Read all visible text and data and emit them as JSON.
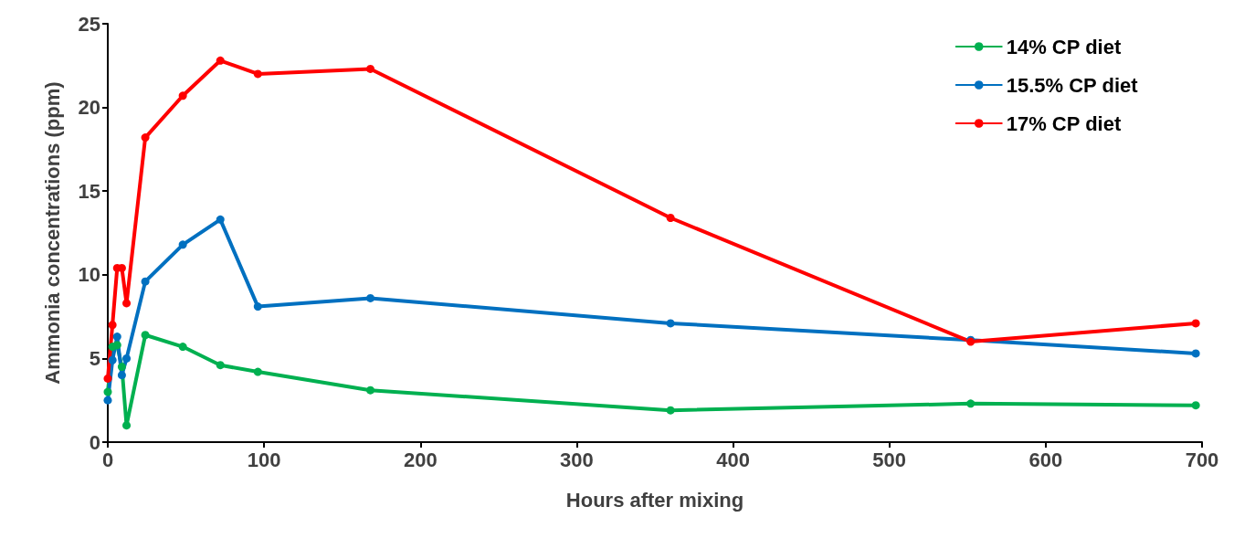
{
  "chart_data": {
    "type": "line",
    "xlabel": "Hours after mixing",
    "ylabel": "Ammonia concentrations (ppm)",
    "x": [
      0,
      3,
      6,
      9,
      12,
      24,
      48,
      72,
      96,
      168,
      360,
      552,
      696
    ],
    "series": [
      {
        "name": "14% CP diet",
        "color": "#00b050",
        "values": [
          3.0,
          5.7,
          5.8,
          4.5,
          1.0,
          6.4,
          5.7,
          4.6,
          4.2,
          3.1,
          1.9,
          2.3,
          2.2
        ]
      },
      {
        "name": "15.5% CP diet",
        "color": "#0070c0",
        "values": [
          2.5,
          4.9,
          6.3,
          4.0,
          5.0,
          9.6,
          11.8,
          13.3,
          8.1,
          8.6,
          7.1,
          6.1,
          5.3
        ]
      },
      {
        "name": "17% CP diet",
        "color": "#ff0000",
        "values": [
          3.8,
          7.0,
          10.4,
          10.4,
          8.3,
          18.2,
          20.7,
          22.8,
          22.0,
          22.3,
          13.4,
          6.0,
          7.1
        ]
      }
    ],
    "xlim": [
      0,
      700
    ],
    "xticks": [
      0,
      100,
      200,
      300,
      400,
      500,
      600,
      700
    ],
    "ylim": [
      0,
      25
    ],
    "yticks": [
      0,
      5,
      10,
      15,
      20,
      25
    ],
    "grid": false,
    "legend": "top right",
    "marker": "circle",
    "line_style": "solid"
  }
}
